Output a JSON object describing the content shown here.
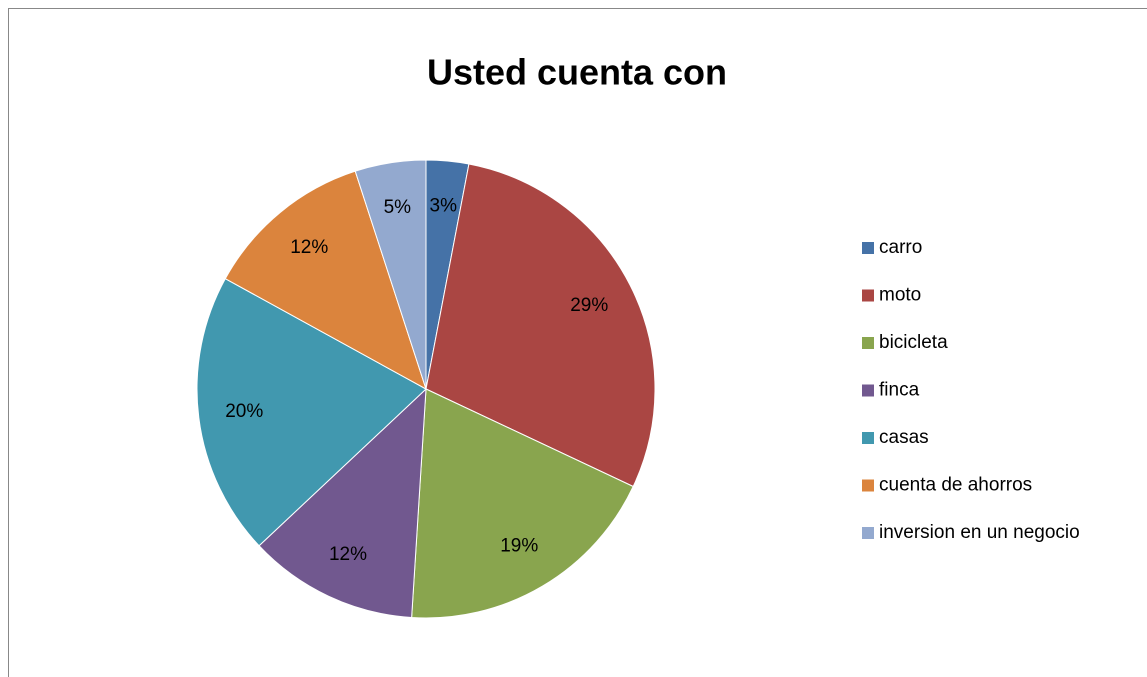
{
  "chart_data": {
    "type": "pie",
    "title": "Usted cuenta con",
    "categories": [
      "carro",
      "moto",
      "bicicleta",
      "finca",
      "casas",
      "cuenta de ahorros",
      "inversion en un negocio"
    ],
    "values": [
      3,
      29,
      19,
      12,
      20,
      12,
      5
    ],
    "value_labels": [
      "3%",
      "29%",
      "19%",
      "12%",
      "20%",
      "12%",
      "5%"
    ],
    "colors": [
      "#4572a7",
      "#aa4643",
      "#89a54e",
      "#71588f",
      "#4198af",
      "#db843d",
      "#93a9cf"
    ],
    "legend": "right"
  }
}
